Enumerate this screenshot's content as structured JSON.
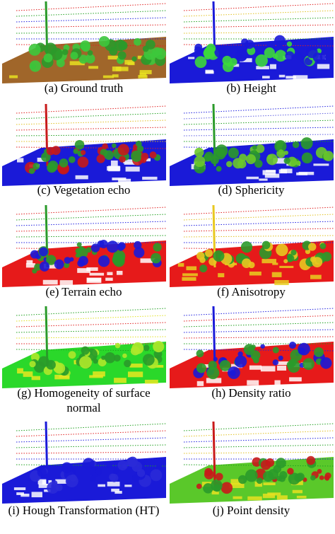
{
  "panels": [
    {
      "caption": "(a) Ground truth"
    },
    {
      "caption": "(b) Height"
    },
    {
      "caption": "(c) Vegetation echo"
    },
    {
      "caption": "(d) Sphericity"
    },
    {
      "caption": "(e) Terrain echo"
    },
    {
      "caption": "(f) Anisotropy"
    },
    {
      "caption": "(g) Homogeneity of surface normal"
    },
    {
      "caption": "(h) Density ratio"
    },
    {
      "caption": "(i) Hough Transformation (HT)"
    },
    {
      "caption": "(j) Point density"
    }
  ]
}
